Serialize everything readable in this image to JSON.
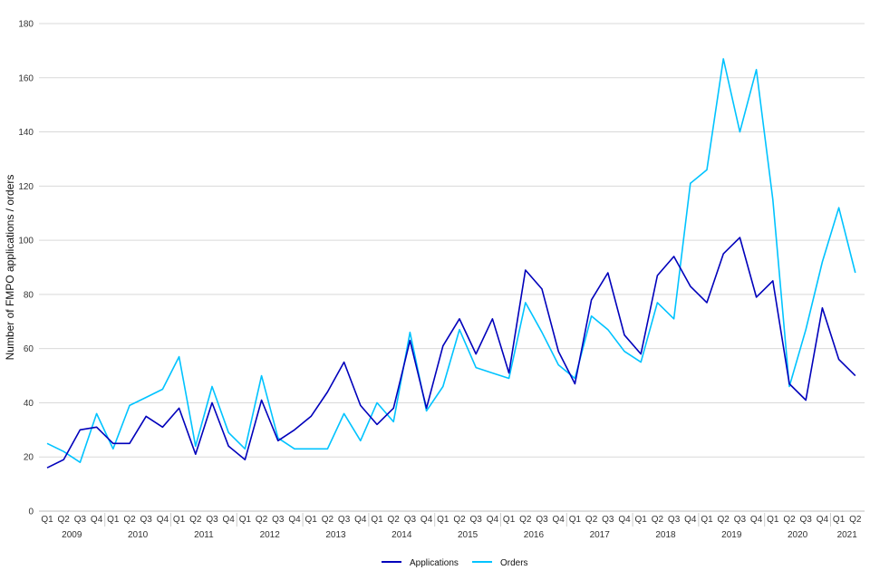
{
  "chart_data": {
    "type": "line",
    "title": "",
    "xlabel": "",
    "ylabel": "Number of FMPO applications / orders",
    "ylim": [
      0,
      180
    ],
    "yticks": [
      0,
      20,
      40,
      60,
      80,
      100,
      120,
      140,
      160,
      180
    ],
    "grid": "horizontal",
    "legend_position": "bottom-center",
    "x": [
      "Q1",
      "Q2",
      "Q3",
      "Q4",
      "Q1",
      "Q2",
      "Q3",
      "Q4",
      "Q1",
      "Q2",
      "Q3",
      "Q4",
      "Q1",
      "Q2",
      "Q3",
      "Q4",
      "Q1",
      "Q2",
      "Q3",
      "Q4",
      "Q1",
      "Q2",
      "Q3",
      "Q4",
      "Q1",
      "Q2",
      "Q3",
      "Q4",
      "Q1",
      "Q2",
      "Q3",
      "Q4",
      "Q1",
      "Q2",
      "Q3",
      "Q4",
      "Q1",
      "Q2",
      "Q3",
      "Q4",
      "Q1",
      "Q2",
      "Q3",
      "Q4",
      "Q1",
      "Q2",
      "Q3",
      "Q4",
      "Q1",
      "Q2"
    ],
    "year_groups": [
      {
        "label": "2009",
        "count": 4
      },
      {
        "label": "2010",
        "count": 4
      },
      {
        "label": "2011",
        "count": 4
      },
      {
        "label": "2012",
        "count": 4
      },
      {
        "label": "2013",
        "count": 4
      },
      {
        "label": "2014",
        "count": 4
      },
      {
        "label": "2015",
        "count": 4
      },
      {
        "label": "2016",
        "count": 4
      },
      {
        "label": "2017",
        "count": 4
      },
      {
        "label": "2018",
        "count": 4
      },
      {
        "label": "2019",
        "count": 4
      },
      {
        "label": "2020",
        "count": 4
      },
      {
        "label": "2021",
        "count": 2
      }
    ],
    "series": [
      {
        "name": "Applications",
        "color": "#0000bb",
        "values": [
          16,
          19,
          30,
          31,
          25,
          25,
          35,
          31,
          38,
          21,
          40,
          24,
          19,
          41,
          26,
          30,
          35,
          44,
          55,
          39,
          32,
          38,
          63,
          38,
          61,
          71,
          58,
          71,
          51,
          89,
          82,
          59,
          47,
          78,
          88,
          65,
          58,
          87,
          94,
          83,
          77,
          95,
          101,
          79,
          85,
          47,
          41,
          75,
          56,
          50
        ]
      },
      {
        "name": "Orders",
        "color": "#00c3ff",
        "values": [
          25,
          22,
          18,
          36,
          23,
          39,
          42,
          45,
          57,
          24,
          46,
          29,
          23,
          50,
          27,
          23,
          23,
          23,
          36,
          26,
          40,
          33,
          66,
          37,
          46,
          67,
          53,
          51,
          49,
          77,
          66,
          54,
          49,
          72,
          67,
          59,
          55,
          77,
          71,
          121,
          126,
          167,
          140,
          163,
          115,
          46,
          67,
          92,
          112,
          88
        ]
      }
    ]
  }
}
